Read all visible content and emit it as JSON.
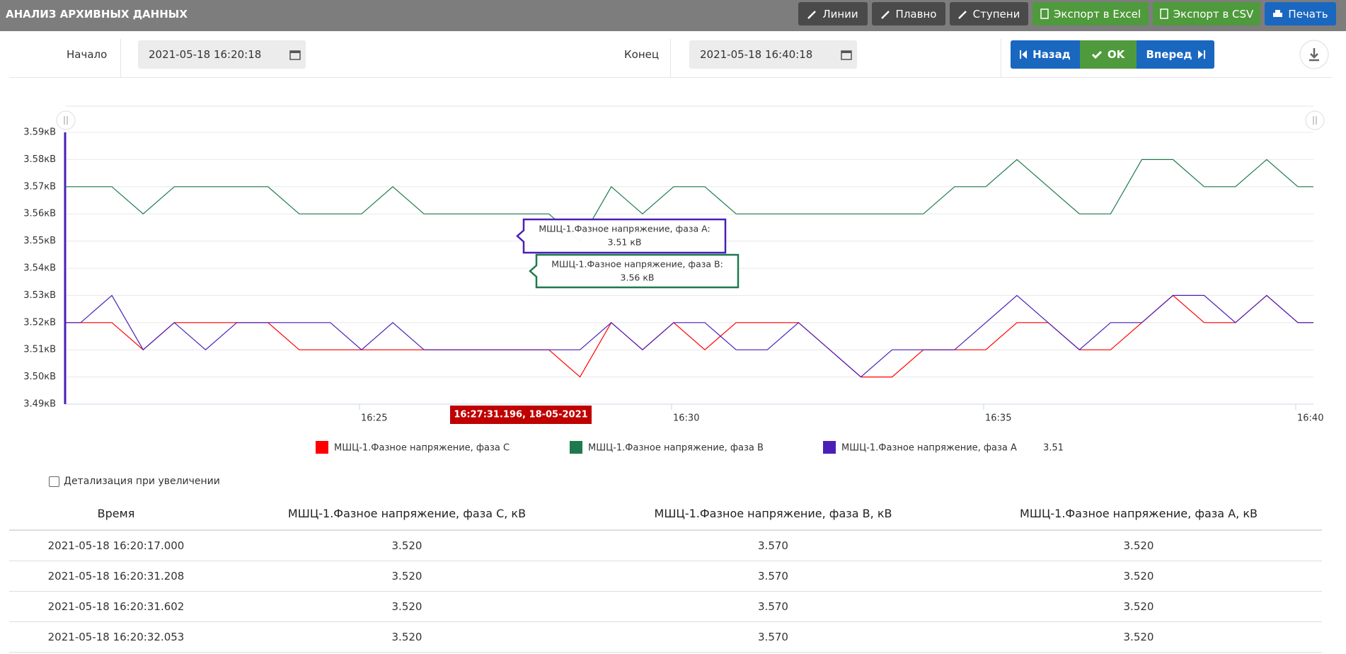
{
  "header": {
    "title": "АНАЛИЗ АРХИВНЫХ ДАННЫХ",
    "buttons": [
      "Линии",
      "Плавно",
      "Ступени",
      "Экспорт в Excel",
      "Экспорт в CSV",
      "Печать"
    ]
  },
  "range": {
    "start_label": "Начало",
    "start": "2021-05-18 16:20:18",
    "end_label": "Конец",
    "end": "2021-05-18 16:40:18",
    "nav": [
      "Назад",
      "OK",
      "Вперед"
    ]
  },
  "chart_data": {
    "type": "line",
    "x": [
      "16:20:17",
      "16:20:32",
      "16:21:02",
      "16:21:32",
      "16:22:02",
      "16:22:32",
      "16:23:02",
      "16:23:32",
      "16:24:02",
      "16:24:32",
      "16:25:02",
      "16:25:32",
      "16:26:02",
      "16:26:32",
      "16:27:02",
      "16:27:32",
      "16:28:02",
      "16:28:32",
      "16:29:02",
      "16:29:32",
      "16:30:02",
      "16:30:32",
      "16:31:02",
      "16:31:32",
      "16:32:02",
      "16:32:32",
      "16:33:02",
      "16:33:32",
      "16:34:02",
      "16:34:32",
      "16:35:02",
      "16:35:32",
      "16:36:02",
      "16:36:32",
      "16:37:02",
      "16:37:32",
      "16:38:02",
      "16:38:32",
      "16:39:02",
      "16:39:32",
      "16:40:02",
      "16:40:17"
    ],
    "xlim": [
      "16:20:17",
      "16:40:17"
    ],
    "xticks": [
      {
        "value": "16:25:00",
        "label": "16:25"
      },
      {
        "value": "16:30:00",
        "label": "16:30"
      },
      {
        "value": "16:35:00",
        "label": "16:35"
      },
      {
        "value": "16:40:00",
        "label": "16:40"
      }
    ],
    "ylim": [
      3.49,
      3.59
    ],
    "yticks": [
      {
        "value": 3.49,
        "label": "3.49кВ"
      },
      {
        "value": 3.5,
        "label": "3.50кВ"
      },
      {
        "value": 3.51,
        "label": "3.51кВ"
      },
      {
        "value": 3.52,
        "label": "3.52кВ"
      },
      {
        "value": 3.53,
        "label": "3.53кВ"
      },
      {
        "value": 3.54,
        "label": "3.54кВ"
      },
      {
        "value": 3.55,
        "label": "3.55кВ"
      },
      {
        "value": 3.56,
        "label": "3.56кВ"
      },
      {
        "value": 3.57,
        "label": "3.57кВ"
      },
      {
        "value": 3.58,
        "label": "3.58кВ"
      },
      {
        "value": 3.59,
        "label": "3.59кВ"
      }
    ],
    "grid": true,
    "series": [
      {
        "name": "МШЦ-1.Фазное напряжение, фаза C",
        "color": "#ff0000",
        "values": [
          3.52,
          3.52,
          3.52,
          3.51,
          3.52,
          3.52,
          3.52,
          3.52,
          3.51,
          3.51,
          3.51,
          3.51,
          3.51,
          3.51,
          3.51,
          3.51,
          3.51,
          3.5,
          3.52,
          3.51,
          3.52,
          3.51,
          3.52,
          3.52,
          3.52,
          3.51,
          3.5,
          3.5,
          3.51,
          3.51,
          3.51,
          3.52,
          3.52,
          3.51,
          3.51,
          3.52,
          3.53,
          3.52,
          3.52,
          3.53,
          3.52,
          3.52
        ]
      },
      {
        "name": "МШЦ-1.Фазное напряжение, фаза B",
        "color": "#1e7a4c",
        "values": [
          3.57,
          3.57,
          3.57,
          3.56,
          3.57,
          3.57,
          3.57,
          3.57,
          3.56,
          3.56,
          3.56,
          3.57,
          3.56,
          3.56,
          3.56,
          3.56,
          3.56,
          3.55,
          3.57,
          3.56,
          3.57,
          3.57,
          3.56,
          3.56,
          3.56,
          3.56,
          3.56,
          3.56,
          3.56,
          3.57,
          3.57,
          3.58,
          3.57,
          3.56,
          3.56,
          3.58,
          3.58,
          3.57,
          3.57,
          3.58,
          3.57,
          3.57
        ]
      },
      {
        "name": "МШЦ-1.Фазное напряжение, фаза A",
        "color": "#4a1fb8",
        "values": [
          3.52,
          3.52,
          3.53,
          3.51,
          3.52,
          3.51,
          3.52,
          3.52,
          3.52,
          3.52,
          3.51,
          3.52,
          3.51,
          3.51,
          3.51,
          3.51,
          3.51,
          3.51,
          3.52,
          3.51,
          3.52,
          3.52,
          3.51,
          3.51,
          3.52,
          3.51,
          3.5,
          3.51,
          3.51,
          3.51,
          3.52,
          3.53,
          3.52,
          3.51,
          3.52,
          3.52,
          3.53,
          3.53,
          3.52,
          3.53,
          3.52,
          3.52
        ]
      }
    ],
    "legend_value": "3.51",
    "cursor_label": "16:27:31.196, 18-05-2021",
    "tooltips": [
      {
        "title": "МШЦ-1.Фазное напряжение, фаза A:",
        "value": "3.51 кВ"
      },
      {
        "title": "МШЦ-1.Фазное напряжение, фаза B:",
        "value": "3.56 кВ"
      }
    ]
  },
  "detail_checkbox": "Детализация при увеличении",
  "table": {
    "columns": [
      "Время",
      "МШЦ-1.Фазное напряжение, фаза C, кВ",
      "МШЦ-1.Фазное напряжение, фаза B, кВ",
      "МШЦ-1.Фазное напряжение, фаза A, кВ"
    ],
    "rows": [
      [
        "2021-05-18 16:20:17.000",
        "3.520",
        "3.570",
        "3.520"
      ],
      [
        "2021-05-18 16:20:31.208",
        "3.520",
        "3.570",
        "3.520"
      ],
      [
        "2021-05-18 16:20:31.602",
        "3.520",
        "3.570",
        "3.520"
      ],
      [
        "2021-05-18 16:20:32.053",
        "3.520",
        "3.570",
        "3.520"
      ]
    ]
  }
}
